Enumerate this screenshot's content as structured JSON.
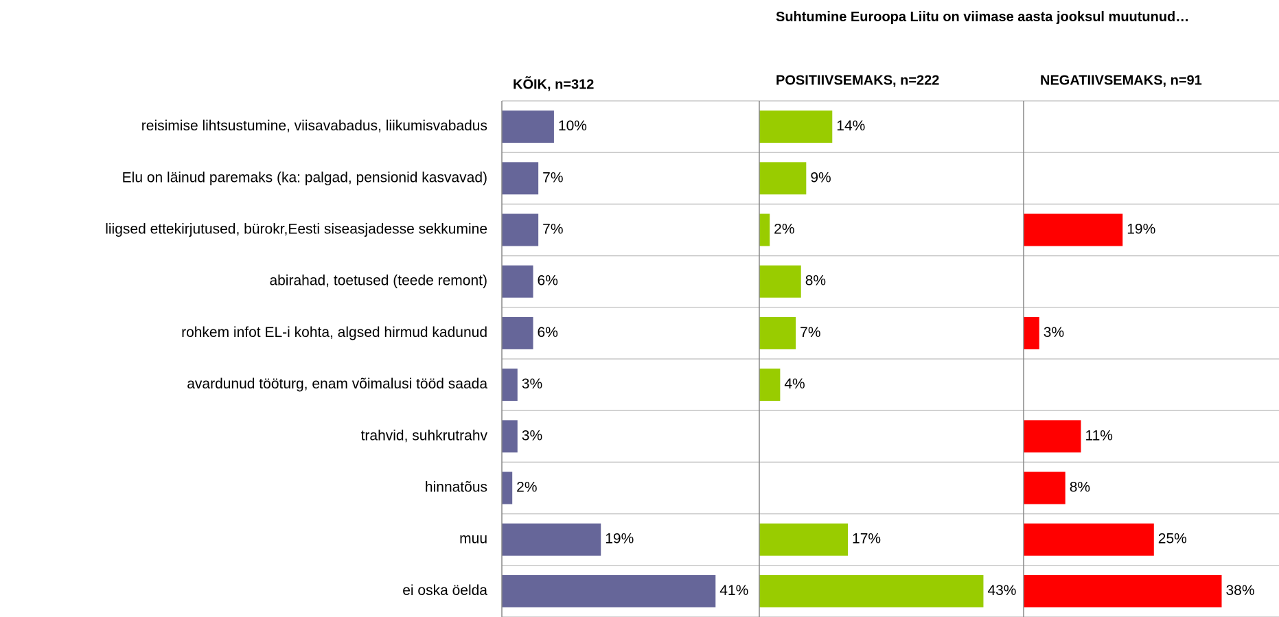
{
  "title": "Suhtumine Euroopa Liitu on viimase aasta jooksul muutunud…",
  "categories": [
    "reisimise lihtsustumine, viisavabadus, liikumisvabadus",
    "Elu on läinud paremaks (ka: palgad, pensionid kasvavad)",
    "liigsed ettekirjutused, bürokr,Eesti siseasjadesse sekkumine",
    "abirahad, toetused (teede remont)",
    "rohkem infot EL-i kohta, algsed hirmud kadunud",
    "avardunud tööturg, enam võimalusi tööd saada",
    "trahvid, suhkrutrahv",
    "hinnatõus",
    "muu",
    "ei oska öelda"
  ],
  "chart_data": [
    {
      "type": "bar",
      "orientation": "horizontal",
      "title": "KÕIK, n=312",
      "color": "#666699",
      "xlim": [
        0,
        49
      ],
      "values": [
        10,
        7,
        7,
        6,
        6,
        3,
        3,
        2,
        19,
        41
      ],
      "value_labels": [
        "10%",
        "7%",
        "7%",
        "6%",
        "6%",
        "3%",
        "3%",
        "2%",
        "19%",
        "41%"
      ]
    },
    {
      "type": "bar",
      "orientation": "horizontal",
      "title": "POSITIIVSEMAKS, n=222",
      "color": "#99cc00",
      "xlim": [
        0,
        49
      ],
      "values": [
        14,
        9,
        2,
        8,
        7,
        4,
        null,
        null,
        17,
        43
      ],
      "value_labels": [
        "14%",
        "9%",
        "2%",
        "8%",
        "7%",
        "4%",
        null,
        null,
        "17%",
        "43%"
      ]
    },
    {
      "type": "bar",
      "orientation": "horizontal",
      "title": "NEGATIIVSEMAKS, n=91",
      "color": "#ff0000",
      "xlim": [
        0,
        49
      ],
      "values": [
        null,
        null,
        19,
        null,
        3,
        null,
        11,
        8,
        25,
        38
      ],
      "value_labels": [
        null,
        null,
        "19%",
        null,
        "3%",
        null,
        "11%",
        "8%",
        "25%",
        "38%"
      ]
    }
  ]
}
